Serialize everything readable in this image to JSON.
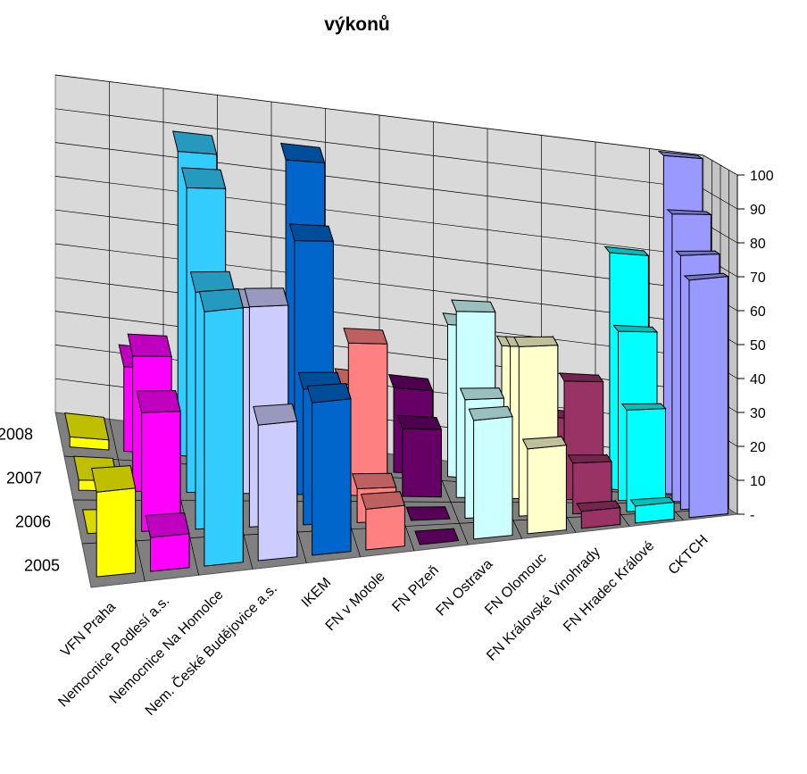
{
  "chart_data": {
    "type": "bar",
    "subtype": "3d-column",
    "title": "výkonů",
    "categories": [
      "VFN Praha",
      "Nemocnice Podlesí a.s.",
      "Nemocnice Na Homolce",
      "Nem. České Budějovice a.s.",
      "IKEM",
      "FN v Motole",
      "FN Plzeň",
      "FN Ostrava",
      "FN Olomouc",
      "FN Královské Vinohrady",
      "FN Hradec Králové",
      "CKTCH"
    ],
    "category_colors": [
      "#ffff00",
      "#ff00ff",
      "#33ccff",
      "#ccccff",
      "#0066cc",
      "#ff8080",
      "#660066",
      "#ccffff",
      "#ffffcc",
      "#993366",
      "#00ffff",
      "#9999ff"
    ],
    "series": [
      {
        "name": "2005",
        "values": [
          25,
          10,
          75,
          40,
          45,
          12,
          0,
          35,
          25,
          5,
          5,
          70
        ]
      },
      {
        "name": "2006",
        "values": [
          0,
          35,
          70,
          65,
          40,
          10,
          0,
          35,
          50,
          15,
          30,
          75
        ]
      },
      {
        "name": "2007",
        "values": [
          3,
          40,
          90,
          55,
          75,
          45,
          20,
          55,
          45,
          35,
          50,
          85
        ]
      },
      {
        "name": "2008",
        "values": [
          3,
          25,
          90,
          45,
          90,
          25,
          25,
          45,
          40,
          20,
          70,
          100
        ]
      }
    ],
    "zaxis_ticks": [
      "-",
      "10",
      "20",
      "30",
      "40",
      "50",
      "60",
      "70",
      "80",
      "90",
      "100"
    ],
    "ylim": [
      0,
      100
    ],
    "grid": true,
    "legend": "none"
  }
}
